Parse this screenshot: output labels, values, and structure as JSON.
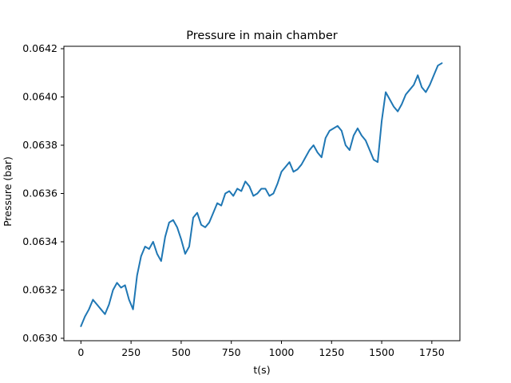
{
  "chart_data": {
    "type": "line",
    "title": "Pressure in main chamber",
    "xlabel": "t(s)",
    "ylabel": "Pressure (bar)",
    "xlim": [
      -85,
      1890
    ],
    "ylim": [
      0.06299,
      0.06421
    ],
    "xticks": [
      0,
      250,
      500,
      750,
      1000,
      1250,
      1500,
      1750
    ],
    "xtick_labels": [
      "0",
      "250",
      "500",
      "750",
      "1000",
      "1250",
      "1500",
      "1750"
    ],
    "yticks": [
      0.063,
      0.0632,
      0.0634,
      0.0636,
      0.0638,
      0.064,
      0.0642
    ],
    "ytick_labels": [
      "0.0630",
      "0.0632",
      "0.0634",
      "0.0636",
      "0.0638",
      "0.0640",
      "0.0642"
    ],
    "grid": false,
    "line_color": "#1f77b4",
    "series": [
      {
        "x": [
          0,
          20,
          40,
          60,
          80,
          100,
          120,
          140,
          160,
          180,
          200,
          220,
          240,
          260,
          280,
          300,
          320,
          340,
          360,
          380,
          400,
          420,
          440,
          460,
          480,
          500,
          520,
          540,
          560,
          580,
          600,
          620,
          640,
          660,
          680,
          700,
          720,
          740,
          760,
          780,
          800,
          820,
          840,
          860,
          880,
          900,
          920,
          940,
          960,
          980,
          1000,
          1020,
          1040,
          1060,
          1080,
          1100,
          1120,
          1140,
          1160,
          1180,
          1200,
          1220,
          1240,
          1260,
          1280,
          1300,
          1320,
          1340,
          1360,
          1380,
          1400,
          1420,
          1440,
          1460,
          1480,
          1500,
          1520,
          1540,
          1560,
          1580,
          1600,
          1620,
          1640,
          1660,
          1680,
          1700,
          1720,
          1740,
          1760,
          1780,
          1800
        ],
        "y": [
          0.06305,
          0.06309,
          0.06312,
          0.06316,
          0.06314,
          0.06312,
          0.0631,
          0.06314,
          0.0632,
          0.06323,
          0.06321,
          0.06322,
          0.06316,
          0.06312,
          0.06326,
          0.06334,
          0.06338,
          0.06337,
          0.0634,
          0.06335,
          0.06332,
          0.06342,
          0.06348,
          0.06349,
          0.06346,
          0.06341,
          0.06335,
          0.06338,
          0.0635,
          0.06352,
          0.06347,
          0.06346,
          0.06348,
          0.06352,
          0.06356,
          0.06355,
          0.0636,
          0.06361,
          0.06359,
          0.06362,
          0.06361,
          0.06365,
          0.06363,
          0.06359,
          0.0636,
          0.06362,
          0.06362,
          0.06359,
          0.0636,
          0.06364,
          0.06369,
          0.06371,
          0.06373,
          0.06369,
          0.0637,
          0.06372,
          0.06375,
          0.06378,
          0.0638,
          0.06377,
          0.06375,
          0.06383,
          0.06386,
          0.06387,
          0.06388,
          0.06386,
          0.0638,
          0.06378,
          0.06384,
          0.06387,
          0.06384,
          0.06382,
          0.06378,
          0.06374,
          0.06373,
          0.0639,
          0.06402,
          0.06399,
          0.06396,
          0.06394,
          0.06397,
          0.06401,
          0.06403,
          0.06405,
          0.06409,
          0.06404,
          0.06402,
          0.06405,
          0.06409,
          0.06413,
          0.06414
        ]
      }
    ]
  }
}
